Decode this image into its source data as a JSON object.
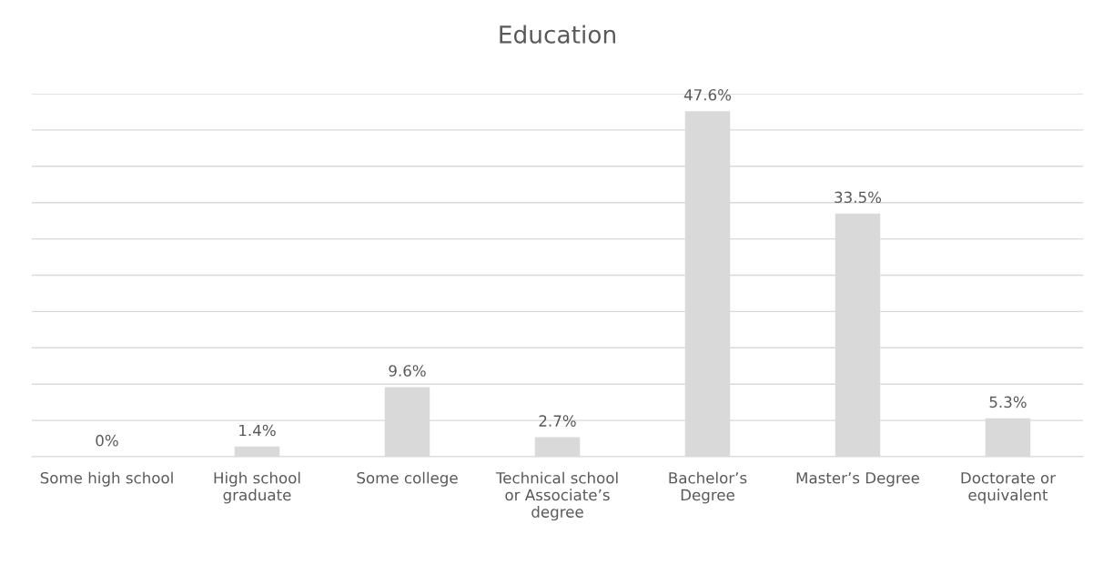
{
  "chart_data": {
    "type": "bar",
    "title": "Education",
    "categories": [
      "Some high school",
      "High school graduate",
      "Some college",
      "Technical school or Associate’s degree",
      "Bachelor’s Degree",
      "Master’s Degree",
      "Doctorate or equivalent"
    ],
    "values": [
      0,
      1.4,
      9.6,
      2.7,
      47.6,
      33.5,
      5.3
    ],
    "value_labels": [
      "0%",
      "1.4%",
      "9.6%",
      "2.7%",
      "47.6%",
      "33.5%",
      "5.3%"
    ],
    "color": "#d9d9d9",
    "ylim": [
      0,
      50
    ],
    "yticks": [
      {
        "value": 0,
        "label": null
      },
      {
        "value": 5,
        "label": null
      },
      {
        "value": 10,
        "label": null
      },
      {
        "value": 15,
        "label": null
      },
      {
        "value": 20,
        "label": null
      },
      {
        "value": 25,
        "label": null
      },
      {
        "value": 30,
        "label": null
      },
      {
        "value": 35,
        "label": null
      },
      {
        "value": 40,
        "label": null
      },
      {
        "value": 45,
        "label": null
      },
      {
        "value": 50,
        "label": null
      }
    ],
    "grid": "y",
    "tick_labels": "x"
  }
}
